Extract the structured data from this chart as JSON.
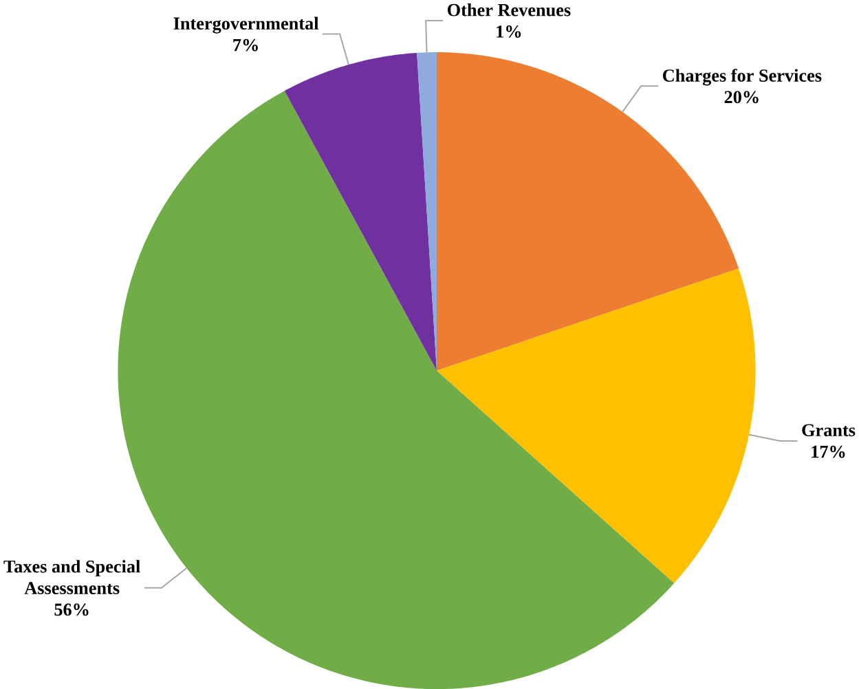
{
  "chart_data": {
    "type": "pie",
    "categories": [
      "Charges for Services",
      "Grants",
      "Taxes and Special Assessments",
      "Intergovernmental",
      "Other Revenues"
    ],
    "values": [
      20,
      17,
      56,
      7,
      1
    ],
    "colors": [
      "#ed7d31",
      "#ffc000",
      "#70ad47",
      "#7030a0",
      "#8faadc"
    ],
    "value_labels": [
      "20%",
      "17%",
      "56%",
      "7%",
      "1%"
    ]
  }
}
